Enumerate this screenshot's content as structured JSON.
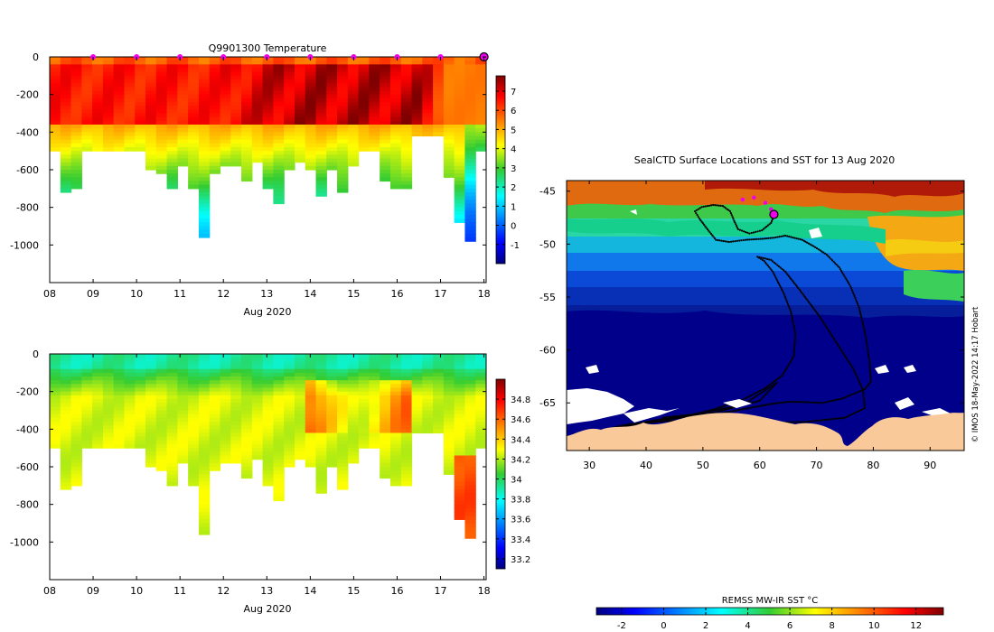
{
  "chart_data": [
    {
      "type": "heatmap",
      "title": "Q9901300  Temperature",
      "xlabel": "Aug 2020",
      "ylabel": "",
      "x_ticks": [
        "08",
        "09",
        "10",
        "11",
        "12",
        "13",
        "14",
        "15",
        "16",
        "17",
        "18"
      ],
      "y_ticks": [
        "0",
        "-200",
        "-400",
        "-600",
        "-800",
        "-1000"
      ],
      "xlim": [
        8,
        18.05
      ],
      "ylim": [
        -1200,
        0
      ],
      "profile_markers_day": [
        9,
        10,
        11,
        12,
        13,
        14,
        15,
        16,
        17
      ],
      "current_marker_day": 18,
      "colorbar": {
        "ticks": [
          "7",
          "6",
          "5",
          "4",
          "3",
          "2",
          "1",
          "0",
          "-1"
        ],
        "range": [
          -2,
          7.8
        ]
      },
      "profile_bottom_depths_m": [
        500,
        720,
        700,
        500,
        500,
        500,
        500,
        500,
        500,
        600,
        620,
        700,
        580,
        700,
        960,
        620,
        580,
        580,
        650,
        560,
        700,
        780,
        600,
        560,
        600,
        740,
        600,
        710,
        570,
        500,
        500,
        660,
        700,
        700,
        420,
        420,
        420,
        640,
        870,
        970,
        500
      ]
    },
    {
      "type": "heatmap",
      "title": "",
      "xlabel": "Aug 2020",
      "ylabel": "",
      "x_ticks": [
        "08",
        "09",
        "10",
        "11",
        "12",
        "13",
        "14",
        "15",
        "16",
        "17",
        "18"
      ],
      "y_ticks": [
        "0",
        "-200",
        "-400",
        "-600",
        "-800",
        "-1000"
      ],
      "xlim": [
        8,
        18.05
      ],
      "ylim": [
        -1200,
        0
      ],
      "colorbar": {
        "ticks": [
          "34.8",
          "34.6",
          "34.4",
          "34.2",
          "34",
          "33.8",
          "33.6",
          "33.4",
          "33.2"
        ],
        "range": [
          33.1,
          35.0
        ]
      },
      "profile_bottom_depths_m": [
        500,
        720,
        700,
        500,
        500,
        500,
        500,
        500,
        500,
        600,
        620,
        700,
        580,
        700,
        960,
        620,
        580,
        580,
        650,
        560,
        700,
        780,
        600,
        560,
        600,
        740,
        600,
        710,
        570,
        500,
        500,
        660,
        700,
        700,
        420,
        420,
        420,
        640,
        870,
        970,
        500
      ]
    },
    {
      "type": "map",
      "title": "SealCTD Surface Locations and SST for 13 Aug 2020",
      "x_ticks": [
        "30",
        "40",
        "50",
        "60",
        "70",
        "80",
        "90"
      ],
      "y_ticks": [
        "-45",
        "-50",
        "-55",
        "-60",
        "-65"
      ],
      "lon_range": [
        26,
        96
      ],
      "lat_range": [
        -69.5,
        -44
      ],
      "current_position": [
        62.5,
        -47.2
      ],
      "recent_positions": [
        [
          57,
          -45.8
        ],
        [
          59,
          -45.6
        ],
        [
          61,
          -46.1
        ],
        [
          62,
          -46.7
        ]
      ],
      "track": [
        [
          33,
          -67.5
        ],
        [
          37,
          -67.1
        ],
        [
          42,
          -66.6
        ],
        [
          47,
          -66.3
        ],
        [
          52,
          -65.6
        ],
        [
          57,
          -64.7
        ],
        [
          61,
          -63.6
        ],
        [
          64,
          -62.4
        ],
        [
          66,
          -60.6
        ],
        [
          66.3,
          -58.5
        ],
        [
          65.5,
          -56.4
        ],
        [
          64.2,
          -54.6
        ],
        [
          62.3,
          -52.6
        ],
        [
          60.8,
          -51.6
        ],
        [
          59.6,
          -51.2
        ],
        [
          62,
          -51.5
        ],
        [
          64.5,
          -52.6
        ],
        [
          67,
          -54.3
        ],
        [
          70.5,
          -56.8
        ],
        [
          73.5,
          -59.3
        ],
        [
          76.5,
          -61.8
        ],
        [
          78.2,
          -63.8
        ],
        [
          78.5,
          -65.5
        ],
        [
          75,
          -66.4
        ],
        [
          68,
          -66.8
        ],
        [
          60,
          -66.9
        ],
        [
          52,
          -66.8
        ],
        [
          44,
          -66.7
        ],
        [
          37,
          -67.0
        ],
        [
          33,
          -67.5
        ],
        [
          52,
          -65.9
        ],
        [
          60,
          -64.8
        ],
        [
          63,
          -63.1
        ],
        [
          57,
          -65.2
        ],
        [
          48,
          -66.1
        ],
        [
          43,
          -66.4
        ],
        [
          51,
          -66.2
        ],
        [
          58,
          -65.5
        ],
        [
          62,
          -65.1
        ],
        [
          65,
          -64.9
        ],
        [
          67,
          -64.9
        ],
        [
          71,
          -65.0
        ],
        [
          74.5,
          -64.6
        ],
        [
          78.5,
          -63.7
        ],
        [
          79.6,
          -63.0
        ],
        [
          79.3,
          -61.0
        ],
        [
          78.6,
          -58.5
        ],
        [
          77.5,
          -56.0
        ],
        [
          76.0,
          -54.0
        ],
        [
          74.0,
          -52.2
        ],
        [
          71.8,
          -51.0
        ],
        [
          69.5,
          -50.2
        ],
        [
          67.5,
          -49.6
        ],
        [
          64.5,
          -49.2
        ],
        [
          62.5,
          -49.4
        ],
        [
          60.5,
          -49.5
        ],
        [
          57.5,
          -49.6
        ],
        [
          54.6,
          -49.8
        ],
        [
          52.3,
          -49.6
        ],
        [
          50.8,
          -48.6
        ],
        [
          49.4,
          -47.6
        ],
        [
          48.6,
          -46.9
        ],
        [
          49.8,
          -46.5
        ],
        [
          51.8,
          -46.3
        ],
        [
          53.5,
          -46.4
        ],
        [
          54.8,
          -46.9
        ],
        [
          55.5,
          -47.8
        ],
        [
          56.2,
          -48.6
        ],
        [
          58.2,
          -49.0
        ],
        [
          60.4,
          -48.7
        ],
        [
          62.0,
          -48.0
        ],
        [
          62.6,
          -47.2
        ]
      ],
      "colorbar": {
        "label": "REMSS MW-IR SST °C",
        "ticks": [
          "-2",
          "0",
          "2",
          "4",
          "6",
          "8",
          "10",
          "12"
        ],
        "range": [
          -3.2,
          13.3
        ]
      }
    }
  ],
  "credit": "© IMOS 18-May-2022 14:17 Hobart",
  "colors": {
    "ice": "#ffffff",
    "land": "#f9c99a",
    "track": "#000000",
    "marker": "#ee00ee"
  }
}
